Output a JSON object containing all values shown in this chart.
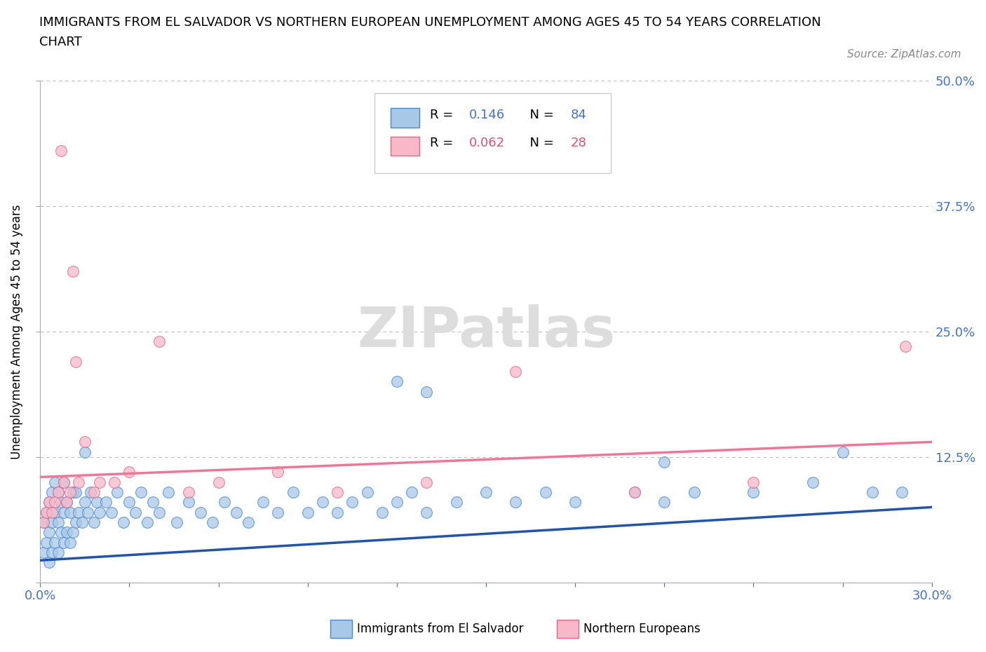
{
  "title_line1": "IMMIGRANTS FROM EL SALVADOR VS NORTHERN EUROPEAN UNEMPLOYMENT AMONG AGES 45 TO 54 YEARS CORRELATION",
  "title_line2": "CHART",
  "source": "Source: ZipAtlas.com",
  "ylabel": "Unemployment Among Ages 45 to 54 years",
  "xlim": [
    0.0,
    0.3
  ],
  "ylim": [
    0.0,
    0.5
  ],
  "legend_R1": "0.146",
  "legend_N1": "84",
  "legend_R2": "0.062",
  "legend_N2": "28",
  "color_blue": "#a8c8e8",
  "color_blue_edge": "#4488cc",
  "color_blue_line": "#2255aa",
  "color_pink": "#f8b8c8",
  "color_pink_edge": "#dd6688",
  "color_pink_line": "#ee7799",
  "watermark_color": "#dddddd",
  "blue_scatter_x": [
    0.001,
    0.001,
    0.002,
    0.002,
    0.003,
    0.003,
    0.003,
    0.004,
    0.004,
    0.004,
    0.005,
    0.005,
    0.005,
    0.006,
    0.006,
    0.006,
    0.007,
    0.007,
    0.008,
    0.008,
    0.008,
    0.009,
    0.009,
    0.01,
    0.01,
    0.011,
    0.011,
    0.012,
    0.012,
    0.013,
    0.014,
    0.015,
    0.016,
    0.017,
    0.018,
    0.019,
    0.02,
    0.022,
    0.024,
    0.026,
    0.028,
    0.03,
    0.032,
    0.034,
    0.036,
    0.038,
    0.04,
    0.043,
    0.046,
    0.05,
    0.054,
    0.058,
    0.062,
    0.066,
    0.07,
    0.075,
    0.08,
    0.085,
    0.09,
    0.095,
    0.1,
    0.105,
    0.11,
    0.115,
    0.12,
    0.125,
    0.13,
    0.14,
    0.15,
    0.16,
    0.17,
    0.18,
    0.2,
    0.21,
    0.22,
    0.24,
    0.26,
    0.27,
    0.28,
    0.29,
    0.015,
    0.12,
    0.13,
    0.21
  ],
  "blue_scatter_y": [
    0.03,
    0.06,
    0.04,
    0.07,
    0.02,
    0.05,
    0.08,
    0.03,
    0.06,
    0.09,
    0.04,
    0.07,
    0.1,
    0.03,
    0.06,
    0.09,
    0.05,
    0.08,
    0.04,
    0.07,
    0.1,
    0.05,
    0.08,
    0.04,
    0.07,
    0.05,
    0.09,
    0.06,
    0.09,
    0.07,
    0.06,
    0.08,
    0.07,
    0.09,
    0.06,
    0.08,
    0.07,
    0.08,
    0.07,
    0.09,
    0.06,
    0.08,
    0.07,
    0.09,
    0.06,
    0.08,
    0.07,
    0.09,
    0.06,
    0.08,
    0.07,
    0.06,
    0.08,
    0.07,
    0.06,
    0.08,
    0.07,
    0.09,
    0.07,
    0.08,
    0.07,
    0.08,
    0.09,
    0.07,
    0.08,
    0.09,
    0.07,
    0.08,
    0.09,
    0.08,
    0.09,
    0.08,
    0.09,
    0.08,
    0.09,
    0.09,
    0.1,
    0.13,
    0.09,
    0.09,
    0.13,
    0.2,
    0.19,
    0.12
  ],
  "pink_scatter_x": [
    0.001,
    0.002,
    0.003,
    0.004,
    0.005,
    0.006,
    0.007,
    0.008,
    0.009,
    0.01,
    0.011,
    0.012,
    0.013,
    0.015,
    0.018,
    0.02,
    0.025,
    0.03,
    0.04,
    0.05,
    0.06,
    0.08,
    0.1,
    0.13,
    0.16,
    0.2,
    0.24,
    0.291
  ],
  "pink_scatter_y": [
    0.06,
    0.07,
    0.08,
    0.07,
    0.08,
    0.09,
    0.43,
    0.1,
    0.08,
    0.09,
    0.31,
    0.22,
    0.1,
    0.14,
    0.09,
    0.1,
    0.1,
    0.11,
    0.24,
    0.09,
    0.1,
    0.11,
    0.09,
    0.1,
    0.21,
    0.09,
    0.1,
    0.235
  ],
  "blue_line_x0": 0.0,
  "blue_line_x1": 0.3,
  "blue_line_y0": 0.022,
  "blue_line_y1": 0.075,
  "pink_line_x0": 0.0,
  "pink_line_x1": 0.3,
  "pink_line_y0": 0.105,
  "pink_line_y1": 0.14
}
